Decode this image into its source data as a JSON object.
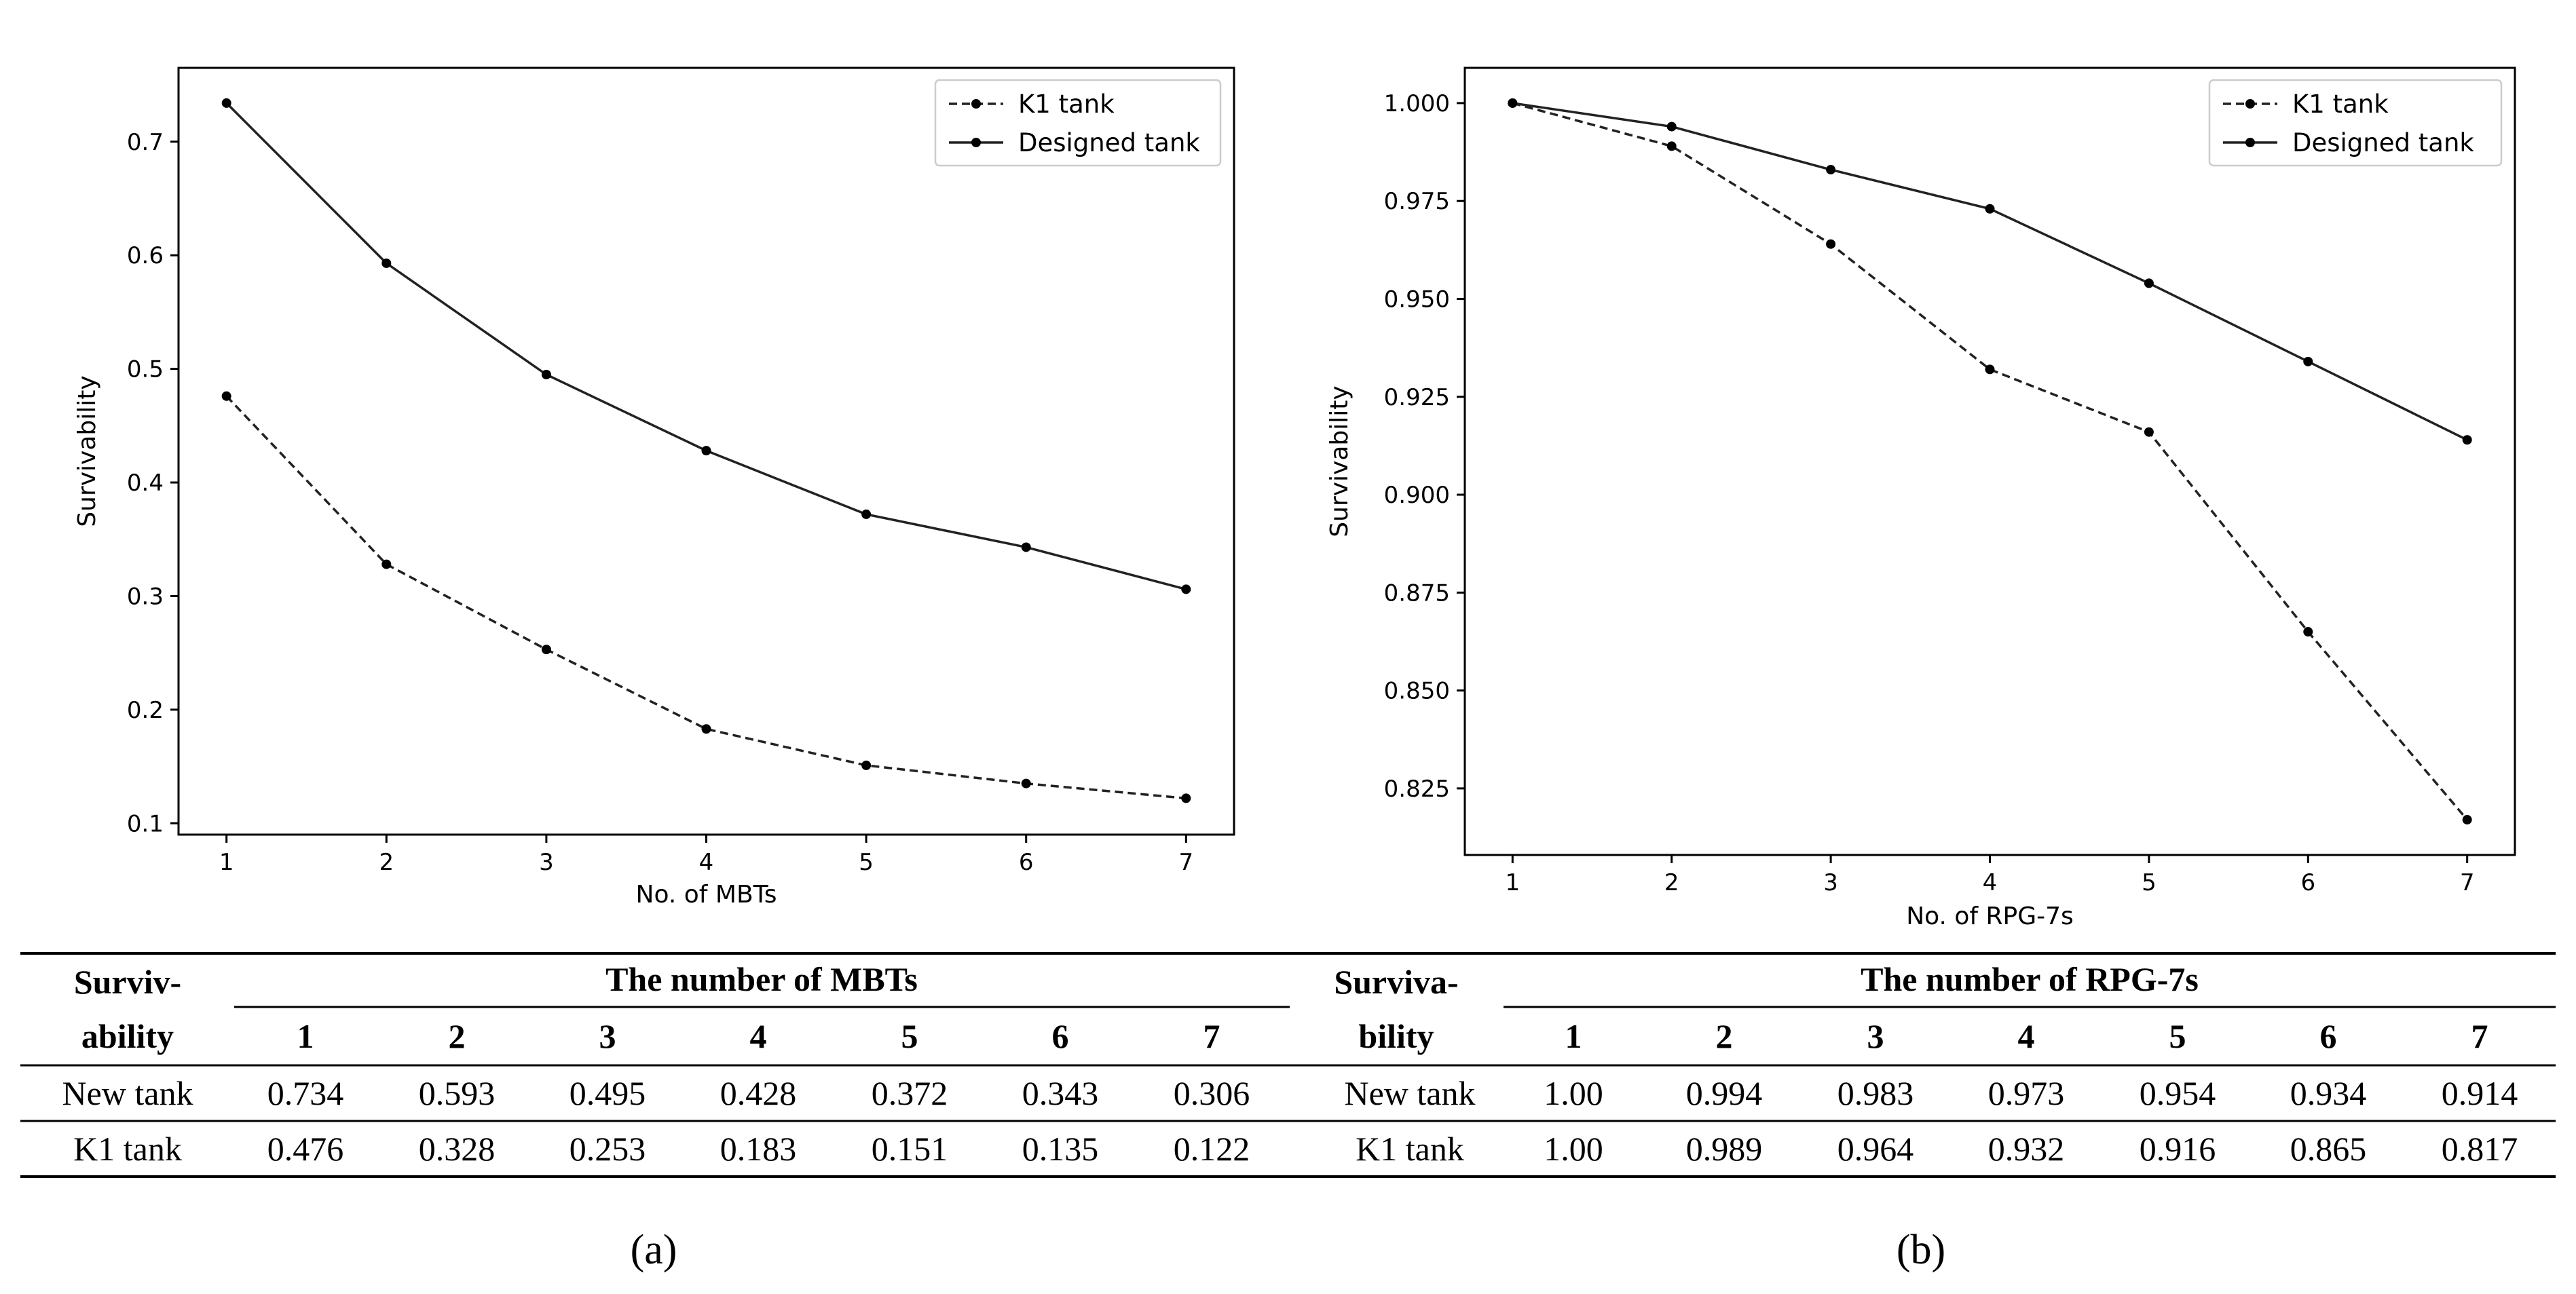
{
  "chart_data": [
    {
      "type": "line",
      "panel": "a",
      "xlabel": "No. of MBTs",
      "ylabel": "Survivability",
      "x": [
        1,
        2,
        3,
        4,
        5,
        6,
        7
      ],
      "xticks": [
        "1",
        "2",
        "3",
        "4",
        "5",
        "6",
        "7"
      ],
      "yticks": [
        "0.1",
        "0.2",
        "0.3",
        "0.4",
        "0.5",
        "0.6",
        "0.7"
      ],
      "ylim": [
        0.09,
        0.765
      ],
      "xlim": [
        0.7,
        7.3
      ],
      "series": [
        {
          "name": "K1 tank",
          "style": "dashed",
          "values": [
            0.476,
            0.328,
            0.253,
            0.183,
            0.151,
            0.135,
            0.122
          ]
        },
        {
          "name": "Designed tank",
          "style": "solid",
          "values": [
            0.734,
            0.593,
            0.495,
            0.428,
            0.372,
            0.343,
            0.306
          ]
        }
      ],
      "legend": "top-right"
    },
    {
      "type": "line",
      "panel": "b",
      "xlabel": "No. of RPG-7s",
      "ylabel": "Survivability",
      "x": [
        1,
        2,
        3,
        4,
        5,
        6,
        7
      ],
      "xticks": [
        "1",
        "2",
        "3",
        "4",
        "5",
        "6",
        "7"
      ],
      "yticks": [
        "0.825",
        "0.850",
        "0.875",
        "0.900",
        "0.925",
        "0.950",
        "0.975",
        "1.000"
      ],
      "ylim": [
        0.808,
        1.009
      ],
      "xlim": [
        0.7,
        7.3
      ],
      "series": [
        {
          "name": "K1 tank",
          "style": "dashed",
          "values": [
            1.0,
            0.989,
            0.964,
            0.932,
            0.916,
            0.865,
            0.817
          ]
        },
        {
          "name": "Designed tank",
          "style": "solid",
          "values": [
            1.0,
            0.994,
            0.983,
            0.973,
            0.954,
            0.934,
            0.914
          ]
        }
      ],
      "legend": "top-right"
    }
  ],
  "table": {
    "left": {
      "row_header_line1": "Surviv-",
      "row_header_line2": "ability",
      "group_header": "The number of MBTs",
      "columns": [
        "1",
        "2",
        "3",
        "4",
        "5",
        "6",
        "7"
      ],
      "rows": [
        {
          "label": "New tank",
          "cells": [
            "0.734",
            "0.593",
            "0.495",
            "0.428",
            "0.372",
            "0.343",
            "0.306"
          ]
        },
        {
          "label": "K1 tank",
          "cells": [
            "0.476",
            "0.328",
            "0.253",
            "0.183",
            "0.151",
            "0.135",
            "0.122"
          ]
        }
      ]
    },
    "right": {
      "row_header_line1": "Surviva-",
      "row_header_line2": "bility",
      "group_header": "The number of RPG-7s",
      "columns": [
        "1",
        "2",
        "3",
        "4",
        "5",
        "6",
        "7"
      ],
      "rows": [
        {
          "label": "New tank",
          "cells": [
            "1.00",
            "0.994",
            "0.983",
            "0.973",
            "0.954",
            "0.934",
            "0.914"
          ]
        },
        {
          "label": "K1 tank",
          "cells": [
            "1.00",
            "0.989",
            "0.964",
            "0.932",
            "0.916",
            "0.865",
            "0.817"
          ]
        }
      ]
    }
  },
  "captions": {
    "a": "(a)",
    "b": "(b)"
  }
}
